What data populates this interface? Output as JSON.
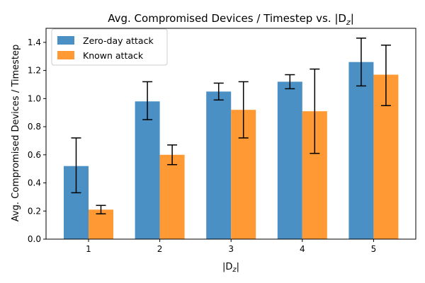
{
  "chart_data": {
    "type": "bar",
    "title_prefix": "Avg. Compromised Devices / Timestep vs. |D",
    "title_subscript": "z",
    "title_suffix": "|",
    "xlabel_prefix": "|D",
    "xlabel_subscript": "z",
    "xlabel_suffix": "|",
    "ylabel": "Avg. Compromised Devices / Timestep",
    "categories": [
      "1",
      "2",
      "3",
      "4",
      "5"
    ],
    "ylim": [
      0,
      1.5
    ],
    "yticks": [
      "0.0",
      "0.2",
      "0.4",
      "0.6",
      "0.8",
      "1.0",
      "1.2",
      "1.4"
    ],
    "legend_position": "top-left",
    "grid": false,
    "series": [
      {
        "name": "Zero-day attack",
        "color": "#4a90c4",
        "values": [
          0.52,
          0.98,
          1.05,
          1.12,
          1.26
        ],
        "err_low": [
          0.33,
          0.85,
          0.99,
          1.07,
          1.09
        ],
        "err_high": [
          0.72,
          1.12,
          1.11,
          1.17,
          1.43
        ]
      },
      {
        "name": "Known attack",
        "color": "#ff9933",
        "values": [
          0.21,
          0.6,
          0.92,
          0.91,
          1.17
        ],
        "err_low": [
          0.18,
          0.53,
          0.72,
          0.61,
          0.95
        ],
        "err_high": [
          0.24,
          0.67,
          1.12,
          1.21,
          1.38
        ]
      }
    ]
  }
}
